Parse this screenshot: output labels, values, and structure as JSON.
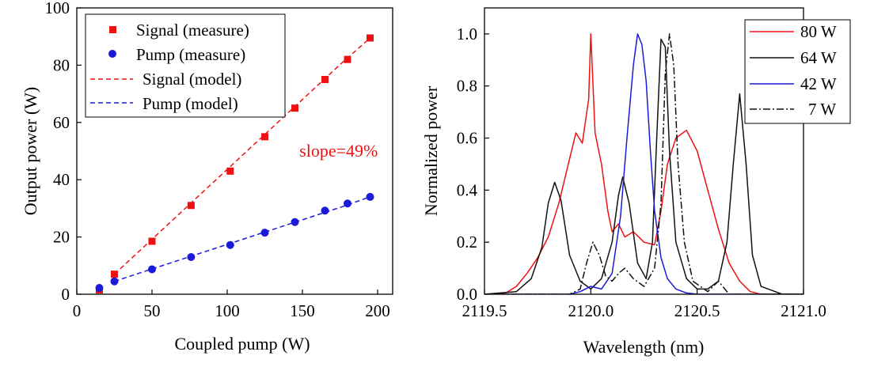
{
  "chart_data": [
    {
      "type": "scatter",
      "title": "",
      "xlabel": "Coupled pump (W)",
      "ylabel": "Output power (W)",
      "xlim": [
        0,
        210
      ],
      "ylim": [
        0,
        100
      ],
      "xticks": [
        0,
        50,
        100,
        150,
        200
      ],
      "yticks": [
        0,
        20,
        40,
        60,
        80,
        100
      ],
      "legend_position": "top-left",
      "annotation": {
        "text": "slope=49%",
        "x": 148,
        "y": 50,
        "color": "#ee1111"
      },
      "series": [
        {
          "name": "Signal (measure)",
          "kind": "marker",
          "marker": "square",
          "color": "#ee1111",
          "x": [
            15,
            25,
            50,
            76,
            102,
            125,
            145,
            165,
            180,
            195
          ],
          "y": [
            1.5,
            7,
            18.5,
            31,
            43,
            55,
            65,
            75,
            82,
            89.5
          ]
        },
        {
          "name": "Pump (measure)",
          "kind": "marker",
          "marker": "circle",
          "color": "#1a1ad8",
          "x": [
            15,
            25,
            50,
            76,
            102,
            125,
            145,
            165,
            180,
            195
          ],
          "y": [
            2.2,
            4.5,
            8.7,
            13,
            17.2,
            21.5,
            25.2,
            29.2,
            31.7,
            34
          ]
        },
        {
          "name": "Signal (model)",
          "kind": "line",
          "dash": "dashed",
          "color": "#ee1111",
          "x": [
            25,
            50,
            75,
            100,
            125,
            150,
            175,
            195
          ],
          "y": [
            7,
            19.2,
            31.4,
            43.6,
            55.8,
            68,
            80.2,
            89.5
          ]
        },
        {
          "name": "Pump (model)",
          "kind": "line",
          "dash": "dashed",
          "color": "#1a1ad8",
          "x": [
            25,
            50,
            75,
            100,
            125,
            150,
            175,
            195
          ],
          "y": [
            4.5,
            8.8,
            13.1,
            17.4,
            21.7,
            26,
            30.3,
            34
          ]
        }
      ]
    },
    {
      "type": "line",
      "title": "",
      "xlabel": "Wavelength (nm)",
      "ylabel": "Normalized power",
      "xlim": [
        2119.5,
        2121.0
      ],
      "ylim": [
        0,
        1.1
      ],
      "xticks": [
        2119.5,
        2120.0,
        2120.5,
        2121.0
      ],
      "xtick_labels": [
        "2119.5",
        "2120.0",
        "2120.5",
        "2121.0"
      ],
      "yticks": [
        0,
        0.2,
        0.4,
        0.6,
        0.8,
        1.0
      ],
      "ytick_labels": [
        "0.0",
        "0.2",
        "0.4",
        "0.6",
        "0.8",
        "1.0"
      ],
      "legend_position": "top-right",
      "series": [
        {
          "name": "80 W",
          "color": "#ee1111",
          "dash": "solid",
          "x": [
            2119.5,
            2119.6,
            2119.65,
            2119.7,
            2119.75,
            2119.8,
            2119.85,
            2119.9,
            2119.93,
            2119.96,
            2119.99,
            2120.0,
            2120.02,
            2120.05,
            2120.08,
            2120.1,
            2120.13,
            2120.16,
            2120.2,
            2120.25,
            2120.3,
            2120.33,
            2120.36,
            2120.4,
            2120.45,
            2120.5,
            2120.55,
            2120.6,
            2120.65,
            2120.7,
            2120.75,
            2120.8,
            2121.0
          ],
          "y": [
            0,
            0.005,
            0.03,
            0.08,
            0.14,
            0.22,
            0.35,
            0.52,
            0.62,
            0.58,
            0.75,
            1.0,
            0.62,
            0.5,
            0.32,
            0.24,
            0.27,
            0.22,
            0.24,
            0.2,
            0.19,
            0.32,
            0.5,
            0.6,
            0.63,
            0.55,
            0.4,
            0.25,
            0.12,
            0.05,
            0.01,
            0,
            0
          ]
        },
        {
          "name": "64 W",
          "color": "#111111",
          "dash": "solid",
          "x": [
            2119.5,
            2119.65,
            2119.72,
            2119.77,
            2119.8,
            2119.83,
            2119.86,
            2119.9,
            2119.95,
            2120.0,
            2120.05,
            2120.1,
            2120.13,
            2120.15,
            2120.18,
            2120.22,
            2120.26,
            2120.29,
            2120.31,
            2120.33,
            2120.35,
            2120.37,
            2120.4,
            2120.45,
            2120.5,
            2120.55,
            2120.6,
            2120.64,
            2120.67,
            2120.7,
            2120.73,
            2120.76,
            2120.8,
            2120.9,
            2121.0
          ],
          "y": [
            0,
            0.01,
            0.06,
            0.18,
            0.35,
            0.43,
            0.36,
            0.15,
            0.05,
            0.02,
            0.06,
            0.2,
            0.38,
            0.45,
            0.35,
            0.12,
            0.06,
            0.2,
            0.6,
            0.98,
            0.95,
            0.55,
            0.2,
            0.06,
            0.02,
            0.02,
            0.05,
            0.2,
            0.5,
            0.77,
            0.5,
            0.15,
            0.03,
            0,
            0
          ]
        },
        {
          "name": "42 W",
          "color": "#1a1ad8",
          "dash": "solid",
          "x": [
            2119.5,
            2119.9,
            2119.95,
            2120.0,
            2120.05,
            2120.1,
            2120.14,
            2120.17,
            2120.2,
            2120.22,
            2120.24,
            2120.26,
            2120.28,
            2120.3,
            2120.33,
            2120.36,
            2120.4,
            2120.45,
            2120.5,
            2121.0
          ],
          "y": [
            0,
            0,
            0.01,
            0.03,
            0.02,
            0.08,
            0.3,
            0.6,
            0.88,
            1.0,
            0.96,
            0.82,
            0.55,
            0.32,
            0.14,
            0.06,
            0.02,
            0.005,
            0,
            0
          ]
        },
        {
          "name": "7 W",
          "color": "#111111",
          "dash": "dashdot",
          "x": [
            2119.5,
            2119.9,
            2119.95,
            2119.98,
            2120.01,
            2120.04,
            2120.07,
            2120.1,
            2120.13,
            2120.16,
            2120.2,
            2120.25,
            2120.3,
            2120.33,
            2120.35,
            2120.37,
            2120.39,
            2120.41,
            2120.44,
            2120.48,
            2120.55,
            2120.6,
            2120.65,
            2121.0
          ],
          "y": [
            0,
            0,
            0.02,
            0.12,
            0.2,
            0.15,
            0.07,
            0.05,
            0.08,
            0.1,
            0.06,
            0.03,
            0.1,
            0.35,
            0.85,
            1.0,
            0.88,
            0.5,
            0.2,
            0.05,
            0.01,
            0.05,
            0,
            0
          ]
        }
      ]
    }
  ]
}
